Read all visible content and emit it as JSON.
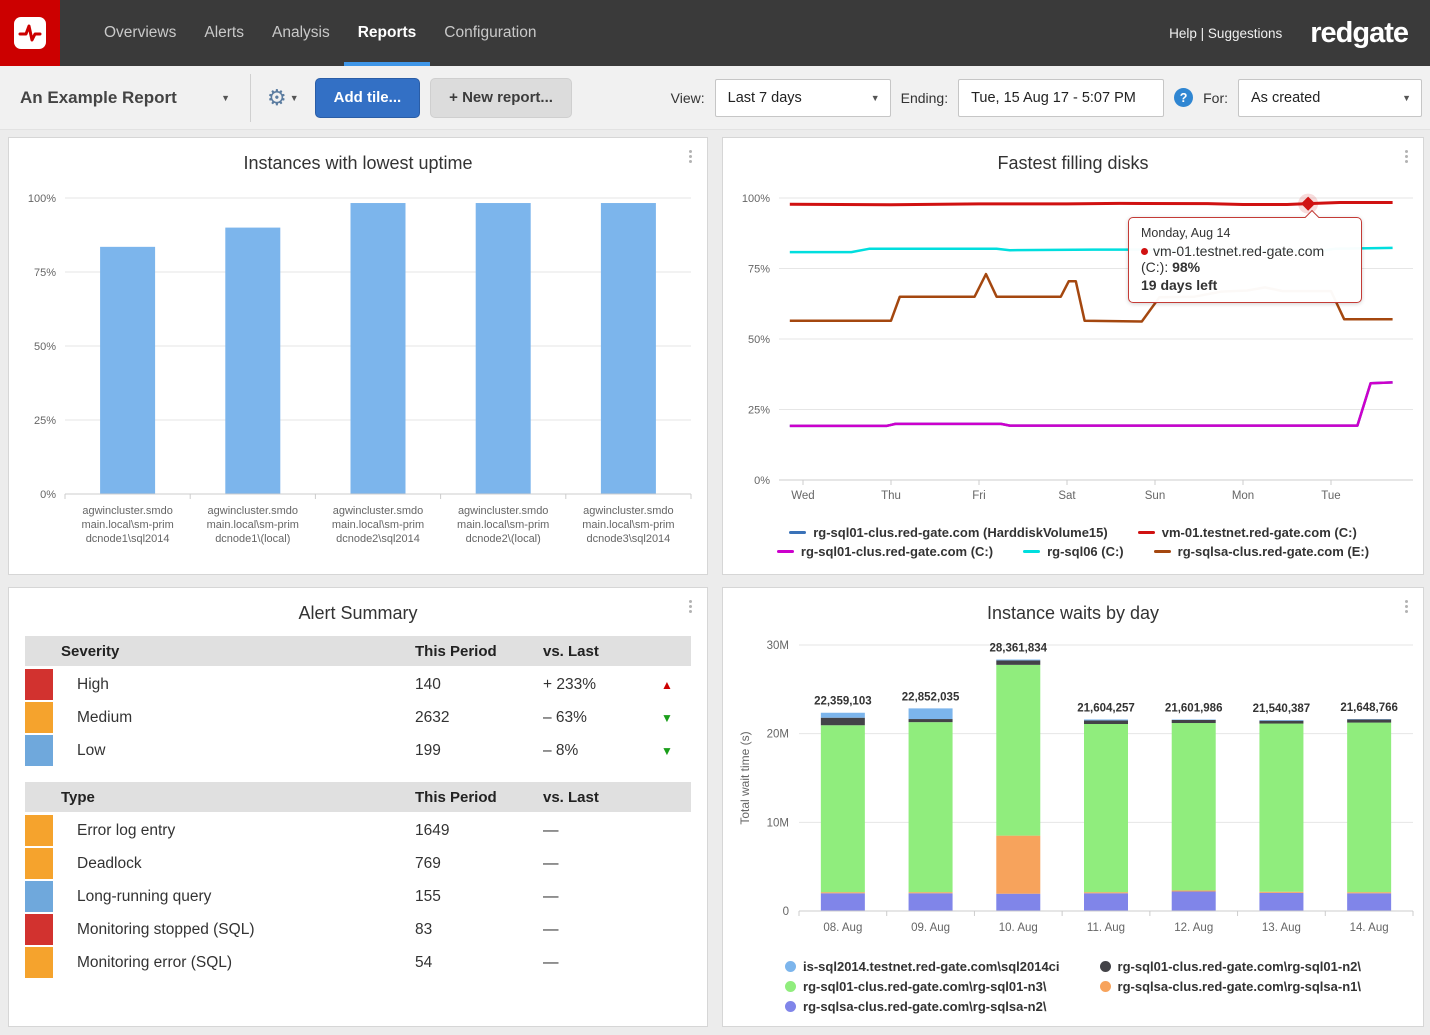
{
  "brand": {
    "wordmark": "redgate",
    "help": "Help | Suggestions"
  },
  "nav": {
    "items": [
      {
        "label": "Overviews",
        "active": false
      },
      {
        "label": "Alerts",
        "active": false
      },
      {
        "label": "Analysis",
        "active": false
      },
      {
        "label": "Reports",
        "active": true
      },
      {
        "label": "Configuration",
        "active": false
      }
    ]
  },
  "toolbar": {
    "report_name": "An Example Report",
    "add_tile_label": "Add tile...",
    "new_report_label": "+ New report...",
    "view_label": "View:",
    "view_value": "Last 7 days",
    "ending_label": "Ending:",
    "ending_value": "Tue, 15 Aug 17 - 5:07 PM",
    "for_label": "For:",
    "for_value": "As created"
  },
  "tiles": {
    "uptime": {
      "title": "Instances with lowest uptime"
    },
    "disks": {
      "title": "Fastest filling disks",
      "tooltip": {
        "date": "Monday, Aug 14",
        "series": "vm-01.testnet.red-gate.com (C:):",
        "value": "98%",
        "note": "19 days left"
      }
    },
    "alerts": {
      "title": "Alert Summary"
    },
    "waits": {
      "title": "Instance waits by day"
    }
  },
  "chart_data": [
    {
      "id": "uptime",
      "type": "bar",
      "title": "Instances with lowest uptime",
      "bar_color": "#7cb5ec",
      "ylim": [
        0,
        100
      ],
      "yticks": [
        "0%",
        "25%",
        "50%",
        "75%",
        "100%"
      ],
      "values": [
        83.5,
        90,
        98.3,
        98.3,
        98.3
      ],
      "categories": [
        [
          "agwincluster.smdo",
          "main.local\\sm-prim",
          "dcnode1\\sql2014"
        ],
        [
          "agwincluster.smdo",
          "main.local\\sm-prim",
          "dcnode1\\(local)"
        ],
        [
          "agwincluster.smdo",
          "main.local\\sm-prim",
          "dcnode2\\sql2014"
        ],
        [
          "agwincluster.smdo",
          "main.local\\sm-prim",
          "dcnode2\\(local)"
        ],
        [
          "agwincluster.smdo",
          "main.local\\sm-prim",
          "dcnode3\\sql2014"
        ]
      ]
    },
    {
      "id": "disks",
      "type": "line",
      "title": "Fastest filling disks",
      "ylim": [
        0,
        100
      ],
      "yticks": [
        "0%",
        "25%",
        "50%",
        "75%",
        "100%"
      ],
      "x_ticks": [
        "Wed",
        "Thu",
        "Fri",
        "Sat",
        "Sun",
        "Mon",
        "Tue"
      ],
      "series": [
        {
          "name": "rg-sql01-clus.red-gate.com (HarddiskVolume15)",
          "color": "#3a72b8",
          "points": [
            [
              -0.15,
              19.2
            ],
            [
              0.95,
              19.2
            ],
            [
              1.05,
              19.9
            ],
            [
              2.25,
              19.9
            ],
            [
              2.35,
              19.3
            ],
            [
              6.3,
              19.3
            ],
            [
              6.45,
              34.3
            ],
            [
              6.7,
              34.6
            ]
          ]
        },
        {
          "name": "rg-sql01-clus.red-gate.com (C:)",
          "color": "#cc00cc",
          "points": [
            [
              -0.15,
              19.2
            ],
            [
              0.95,
              19.2
            ],
            [
              1.05,
              19.9
            ],
            [
              2.25,
              19.9
            ],
            [
              2.35,
              19.3
            ],
            [
              6.3,
              19.3
            ],
            [
              6.45,
              34.3
            ],
            [
              6.7,
              34.6
            ]
          ]
        },
        {
          "name": "rg-sql06 (C:)",
          "color": "#00dede",
          "points": [
            [
              -0.15,
              80.8
            ],
            [
              0.55,
              80.8
            ],
            [
              0.75,
              82.0
            ],
            [
              2.2,
              82.0
            ],
            [
              2.35,
              81.5
            ],
            [
              3.3,
              81.7
            ],
            [
              4.0,
              81.7
            ],
            [
              4.05,
              81.4
            ],
            [
              5.9,
              81.4
            ],
            [
              6.05,
              82.0
            ],
            [
              6.7,
              82.3
            ]
          ]
        },
        {
          "name": "rg-sqlsa-clus.red-gate.com (E:)",
          "color": "#a4470f",
          "points": [
            [
              -0.15,
              56.5
            ],
            [
              1.0,
              56.5
            ],
            [
              1.1,
              65
            ],
            [
              1.95,
              65
            ],
            [
              2.08,
              73
            ],
            [
              2.2,
              65
            ],
            [
              2.93,
              65
            ],
            [
              3.02,
              70.5
            ],
            [
              3.1,
              70.5
            ],
            [
              3.2,
              56.5
            ],
            [
              3.85,
              56.2
            ],
            [
              4.05,
              64.8
            ],
            [
              4.45,
              65
            ],
            [
              4.75,
              66.8
            ],
            [
              5.05,
              67.2
            ],
            [
              5.25,
              68.3
            ],
            [
              5.45,
              67
            ],
            [
              6.0,
              67
            ],
            [
              6.15,
              57
            ],
            [
              6.7,
              57
            ]
          ]
        },
        {
          "name": "vm-01.testnet.red-gate.com (C:)",
          "color": "#d01111",
          "points": [
            [
              -0.15,
              97.8
            ],
            [
              1.0,
              97.6
            ],
            [
              2.0,
              97.9
            ],
            [
              3.0,
              97.9
            ],
            [
              3.6,
              98.1
            ],
            [
              4.6,
              98.0
            ],
            [
              5.0,
              97.7
            ],
            [
              5.5,
              97.7
            ],
            [
              5.74,
              98.0
            ],
            [
              6.1,
              98.4
            ],
            [
              6.7,
              98.4
            ]
          ]
        }
      ],
      "marker": {
        "series": "vm-01.testnet.red-gate.com (C:)",
        "x": 5.74,
        "y": 98
      },
      "legend_rows": [
        [
          "rg-sql01-clus.red-gate.com (HarddiskVolume15)",
          "vm-01.testnet.red-gate.com (C:)"
        ],
        [
          "rg-sql01-clus.red-gate.com (C:)",
          "rg-sql06 (C:)",
          "rg-sqlsa-clus.red-gate.com (E:)"
        ]
      ]
    },
    {
      "id": "alerts",
      "type": "table",
      "title": "Alert Summary",
      "arrow_colors": {
        "up": "#cc0000",
        "down": "#1a9e1a"
      },
      "sections": [
        {
          "columns": [
            "Severity",
            "This Period",
            "vs. Last"
          ],
          "rows": [
            {
              "color": "#d2322f",
              "label": "High",
              "period": "140",
              "vs": "+ 233%",
              "arrow": "up"
            },
            {
              "color": "#f5a32d",
              "label": "Medium",
              "period": "2632",
              "vs": "– 63%",
              "arrow": "down"
            },
            {
              "color": "#6fa8dc",
              "label": "Low",
              "period": "199",
              "vs": "– 8%",
              "arrow": "down"
            }
          ]
        },
        {
          "columns": [
            "Type",
            "This Period",
            "vs. Last"
          ],
          "rows": [
            {
              "color": "#f5a32d",
              "label": "Error log entry",
              "period": "1649",
              "vs": "—",
              "arrow": null
            },
            {
              "color": "#f5a32d",
              "label": "Deadlock",
              "period": "769",
              "vs": "—",
              "arrow": null
            },
            {
              "color": "#6fa8dc",
              "label": "Long-running query",
              "period": "155",
              "vs": "—",
              "arrow": null
            },
            {
              "color": "#d2322f",
              "label": "Monitoring stopped (SQL)",
              "period": "83",
              "vs": "—",
              "arrow": null
            },
            {
              "color": "#f5a32d",
              "label": "Monitoring error (SQL)",
              "period": "54",
              "vs": "—",
              "arrow": null
            }
          ]
        }
      ]
    },
    {
      "id": "waits",
      "type": "stacked_bar",
      "title": "Instance waits by day",
      "ylabel": "Total wait time (s)",
      "ylim": [
        0,
        30000000
      ],
      "yticks": [
        "0",
        "10M",
        "20M",
        "30M"
      ],
      "categories": [
        "08. Aug",
        "09. Aug",
        "10. Aug",
        "11. Aug",
        "12. Aug",
        "13. Aug",
        "14. Aug"
      ],
      "total_labels": [
        "22,359,103",
        "22,852,035",
        "28,361,834",
        "21,604,257",
        "21,601,986",
        "21,540,387",
        "21,648,766"
      ],
      "series": [
        {
          "name": "rg-sqlsa-clus.red-gate.com\\rg-sqlsa-n2\\",
          "color": "#8085e9",
          "values": [
            2000000,
            2000000,
            1950000,
            2000000,
            2200000,
            2050000,
            2000000
          ]
        },
        {
          "name": "rg-sqlsa-clus.red-gate.com\\rg-sqlsa-n1\\",
          "color": "#f7a35c",
          "values": [
            120000,
            120000,
            6550000,
            120000,
            120000,
            120000,
            120000
          ]
        },
        {
          "name": "rg-sql01-clus.red-gate.com\\rg-sql01-n3\\",
          "color": "#90ed7d",
          "values": [
            18830000,
            19180000,
            19260000,
            18970000,
            18880000,
            18970000,
            19130000
          ]
        },
        {
          "name": "rg-sql01-clus.red-gate.com\\rg-sql01-n2\\",
          "color": "#434348",
          "values": [
            850000,
            350000,
            500000,
            400000,
            350000,
            320000,
            350000
          ]
        },
        {
          "name": "is-sql2014.testnet.red-gate.com\\sql2014ci",
          "color": "#7cb5ec",
          "values": [
            559103,
            1202035,
            101834,
            114257,
            51986,
            80387,
            48766
          ]
        }
      ],
      "legend_rows": [
        [
          "is-sql2014.testnet.red-gate.com\\sql2014ci",
          "rg-sql01-clus.red-gate.com\\rg-sql01-n2\\"
        ],
        [
          "rg-sql01-clus.red-gate.com\\rg-sql01-n3\\",
          "rg-sqlsa-clus.red-gate.com\\rg-sqlsa-n1\\"
        ],
        [
          "rg-sqlsa-clus.red-gate.com\\rg-sqlsa-n2\\"
        ]
      ]
    }
  ]
}
